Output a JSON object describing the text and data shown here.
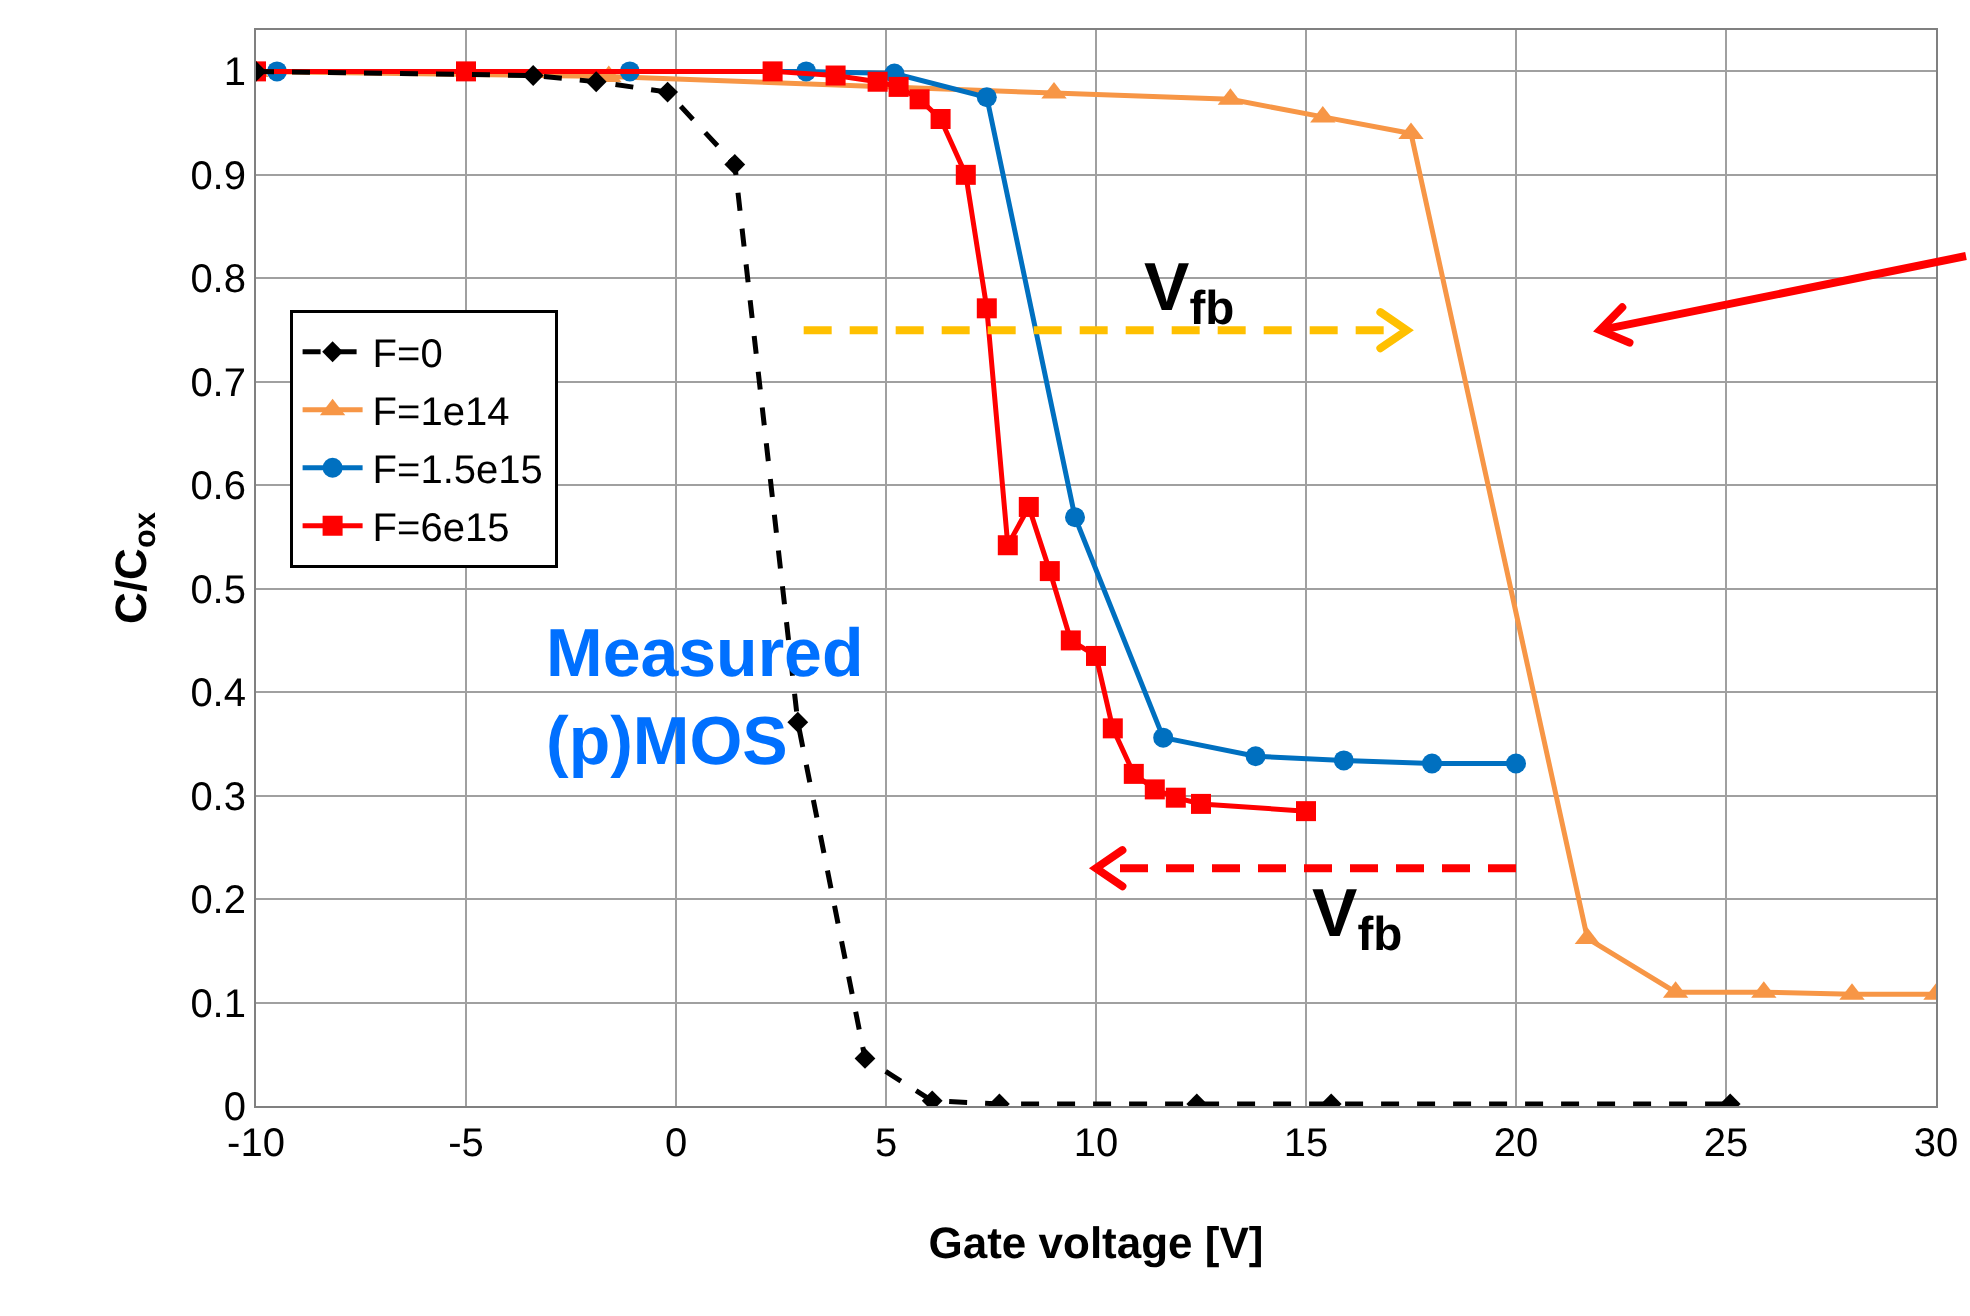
{
  "chart_data": {
    "type": "line",
    "xlabel": "Gate voltage [V]",
    "ylabel": "C/C$_{ox}$",
    "xlim": [
      -10,
      30
    ],
    "xticks": [
      -10,
      -5,
      0,
      5,
      10,
      15,
      20,
      25,
      30
    ],
    "ylim": [
      0,
      1.04
    ],
    "yticks": [
      0,
      0.1,
      0.2,
      0.3,
      0.4,
      0.5,
      0.6,
      0.7,
      0.8,
      0.9,
      1
    ],
    "grid": true,
    "legend": "top left",
    "series": [
      {
        "name": "F=0",
        "color": "#000000",
        "marker": "diamond",
        "line_style": "dashed",
        "x": [
          -10,
          -5,
          -3.4,
          -1.9,
          -0.2,
          1.4,
          2.9,
          4.5,
          6.1,
          7.7,
          12.4,
          15.6,
          25.1
        ],
        "values": [
          1,
          null,
          0.996,
          0.99,
          0.98,
          0.91,
          0.371,
          0.046,
          0.005,
          0.002,
          0.002,
          0.002,
          0.002
        ]
      },
      {
        "name": "F=1e14",
        "color": "#f79646",
        "marker": "triangle",
        "line_style": "solid",
        "x": [
          -10,
          -1.6,
          9,
          13.2,
          15.4,
          17.5,
          21.7,
          23.8,
          25.9,
          28,
          30
        ],
        "values": [
          1,
          0.995,
          0.979,
          0.973,
          0.956,
          0.94,
          0.162,
          0.11,
          0.11,
          0.108,
          0.108
        ]
      },
      {
        "name": "F=1.5e15",
        "color": "#0070c0",
        "marker": "circle",
        "line_style": "solid",
        "x": [
          -9.5,
          -1.1,
          3.1,
          5.2,
          7.4,
          9.5,
          11.6,
          13.8,
          15.9,
          18,
          20
        ],
        "values": [
          1,
          1,
          1,
          0.998,
          0.975,
          0.569,
          0.356,
          0.338,
          0.334,
          0.331,
          0.331
        ]
      },
      {
        "name": "F=6e15",
        "color": "#ff0000",
        "marker": "square",
        "line_style": "solid",
        "x": [
          -10,
          -5,
          2.3,
          3.8,
          4.8,
          5.3,
          5.8,
          6.3,
          6.9,
          7.4,
          7.9,
          8.4,
          8.9,
          9.4,
          10,
          10.4,
          10.9,
          11.4,
          11.9,
          12.5,
          15
        ],
        "values": [
          1,
          1,
          1,
          0.996,
          0.99,
          0.985,
          0.973,
          0.954,
          0.9,
          0.771,
          0.542,
          0.579,
          0.517,
          0.45,
          0.435,
          0.365,
          0.321,
          0.306,
          0.298,
          0.292,
          0.285
        ]
      }
    ],
    "annotations": [
      "V$_{fb}$",
      "V$_{fb}$",
      "Measured\n(p)MOS"
    ]
  }
}
